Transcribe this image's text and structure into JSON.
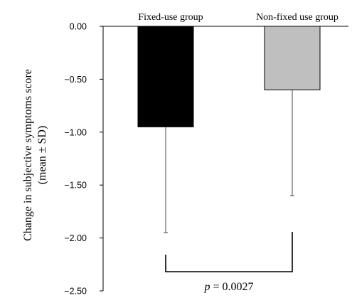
{
  "chart_data": {
    "type": "bar",
    "categories": [
      "Fixed-use group",
      "Non-fixed use group"
    ],
    "series": [
      {
        "values": [
          -0.95,
          -0.6
        ],
        "error_sd": [
          1.0,
          1.0
        ],
        "colors": [
          "#000000",
          "#bfbfbf"
        ]
      }
    ],
    "ylabel_line1": "Change in subjective symptoms score",
    "ylabel_line2": "(mean ± SD)",
    "ylim": [
      -2.5,
      0
    ],
    "yticks": [
      0,
      -0.5,
      -1.0,
      -1.5,
      -2.0,
      -2.5
    ],
    "ytick_labels": [
      "0.00",
      "−0.50",
      "−1.00",
      "−1.50",
      "−2.00",
      "−2.50"
    ],
    "x_axis_position": "top",
    "grid": false,
    "annotation": {
      "p_symbol": "p",
      "p_text": " = 0.0027"
    }
  }
}
